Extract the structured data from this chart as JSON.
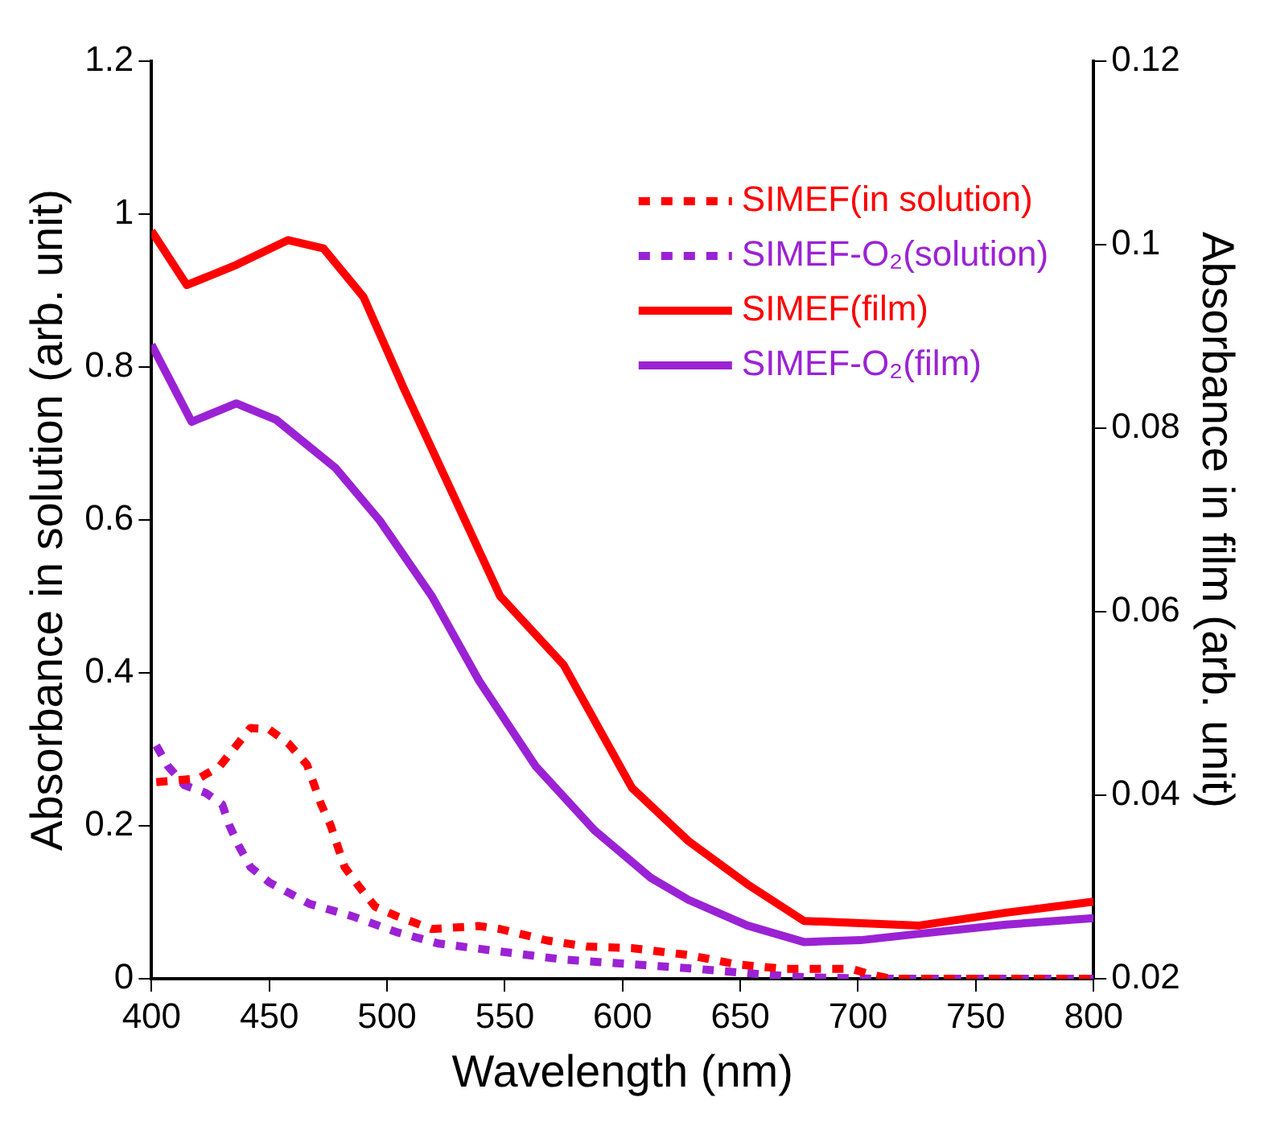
{
  "chart_data": {
    "type": "line",
    "xlabel": "Wavelength (nm)",
    "ylabel": "Absorbance in solution (arb. unit)",
    "y2label": "Absorbance in film (arb. unit)",
    "xlim": [
      400,
      800
    ],
    "xticks": [
      400,
      450,
      500,
      550,
      600,
      650,
      700,
      750,
      800
    ],
    "ylim": [
      0,
      1.2
    ],
    "yticks": [
      0,
      0.2,
      0.4,
      0.6,
      0.8,
      1,
      1.2
    ],
    "y2lim": [
      0.02,
      0.12
    ],
    "y2ticks": [
      0.02,
      0.04,
      0.06,
      0.08,
      0.1,
      0.12
    ],
    "grid": false,
    "legend": "top right",
    "marker": "none",
    "series": [
      {
        "name": "SIMEF(in solution)",
        "color": "#ff0000",
        "line_style": "dotted",
        "axis": "y",
        "x": [
          402,
          420,
          429,
          442,
          450,
          458,
          466,
          472,
          476,
          482,
          488,
          495,
          504,
          519,
          539,
          548,
          568,
          585,
          604,
          628,
          648,
          668,
          687,
          697,
          705,
          714,
          750,
          800
        ],
        "values": [
          0.257,
          0.262,
          0.278,
          0.328,
          0.326,
          0.308,
          0.28,
          0.228,
          0.201,
          0.146,
          0.121,
          0.094,
          0.082,
          0.065,
          0.069,
          0.065,
          0.05,
          0.042,
          0.04,
          0.031,
          0.019,
          0.013,
          0.013,
          0.013,
          0.006,
          0,
          0,
          0
        ]
      },
      {
        "name": "SIMEF-O₂(solution)",
        "color": "#9b22d4",
        "line_style": "dotted",
        "axis": "y",
        "x": [
          402,
          407,
          414,
          423,
          430,
          433,
          437,
          442,
          450,
          467,
          485,
          504,
          522,
          547,
          575,
          604,
          631,
          658,
          677,
          707,
          750,
          800
        ],
        "values": [
          0.305,
          0.278,
          0.253,
          0.243,
          0.228,
          0.201,
          0.174,
          0.146,
          0.126,
          0.098,
          0.082,
          0.061,
          0.046,
          0.036,
          0.025,
          0.019,
          0.013,
          0.006,
          0.002,
          0,
          0,
          0
        ]
      },
      {
        "name": "SIMEF(film)",
        "color": "#ff0000",
        "line_style": "solid",
        "axis": "y2",
        "x": [
          400,
          415,
          436,
          458,
          473,
          490,
          507,
          526,
          548,
          575,
          604,
          628,
          653,
          677,
          726,
          763,
          800
        ],
        "values": [
          0.1015,
          0.0956,
          0.0978,
          0.1005,
          0.0996,
          0.0943,
          0.0844,
          0.0739,
          0.0617,
          0.0542,
          0.0408,
          0.035,
          0.0303,
          0.0263,
          0.0258,
          0.0272,
          0.0284
        ]
      },
      {
        "name": "SIMEF-O₂(film)",
        "color": "#9b22d4",
        "line_style": "solid",
        "axis": "y2",
        "x": [
          400,
          417,
          436,
          453,
          478,
          497,
          519,
          539,
          563,
          588,
          612,
          628,
          653,
          677,
          701,
          726,
          763,
          800
        ],
        "values": [
          0.0891,
          0.0807,
          0.0827,
          0.0809,
          0.0757,
          0.0699,
          0.0617,
          0.0525,
          0.0432,
          0.0362,
          0.031,
          0.0286,
          0.0258,
          0.024,
          0.0242,
          0.0249,
          0.0259,
          0.0266
        ]
      }
    ]
  }
}
